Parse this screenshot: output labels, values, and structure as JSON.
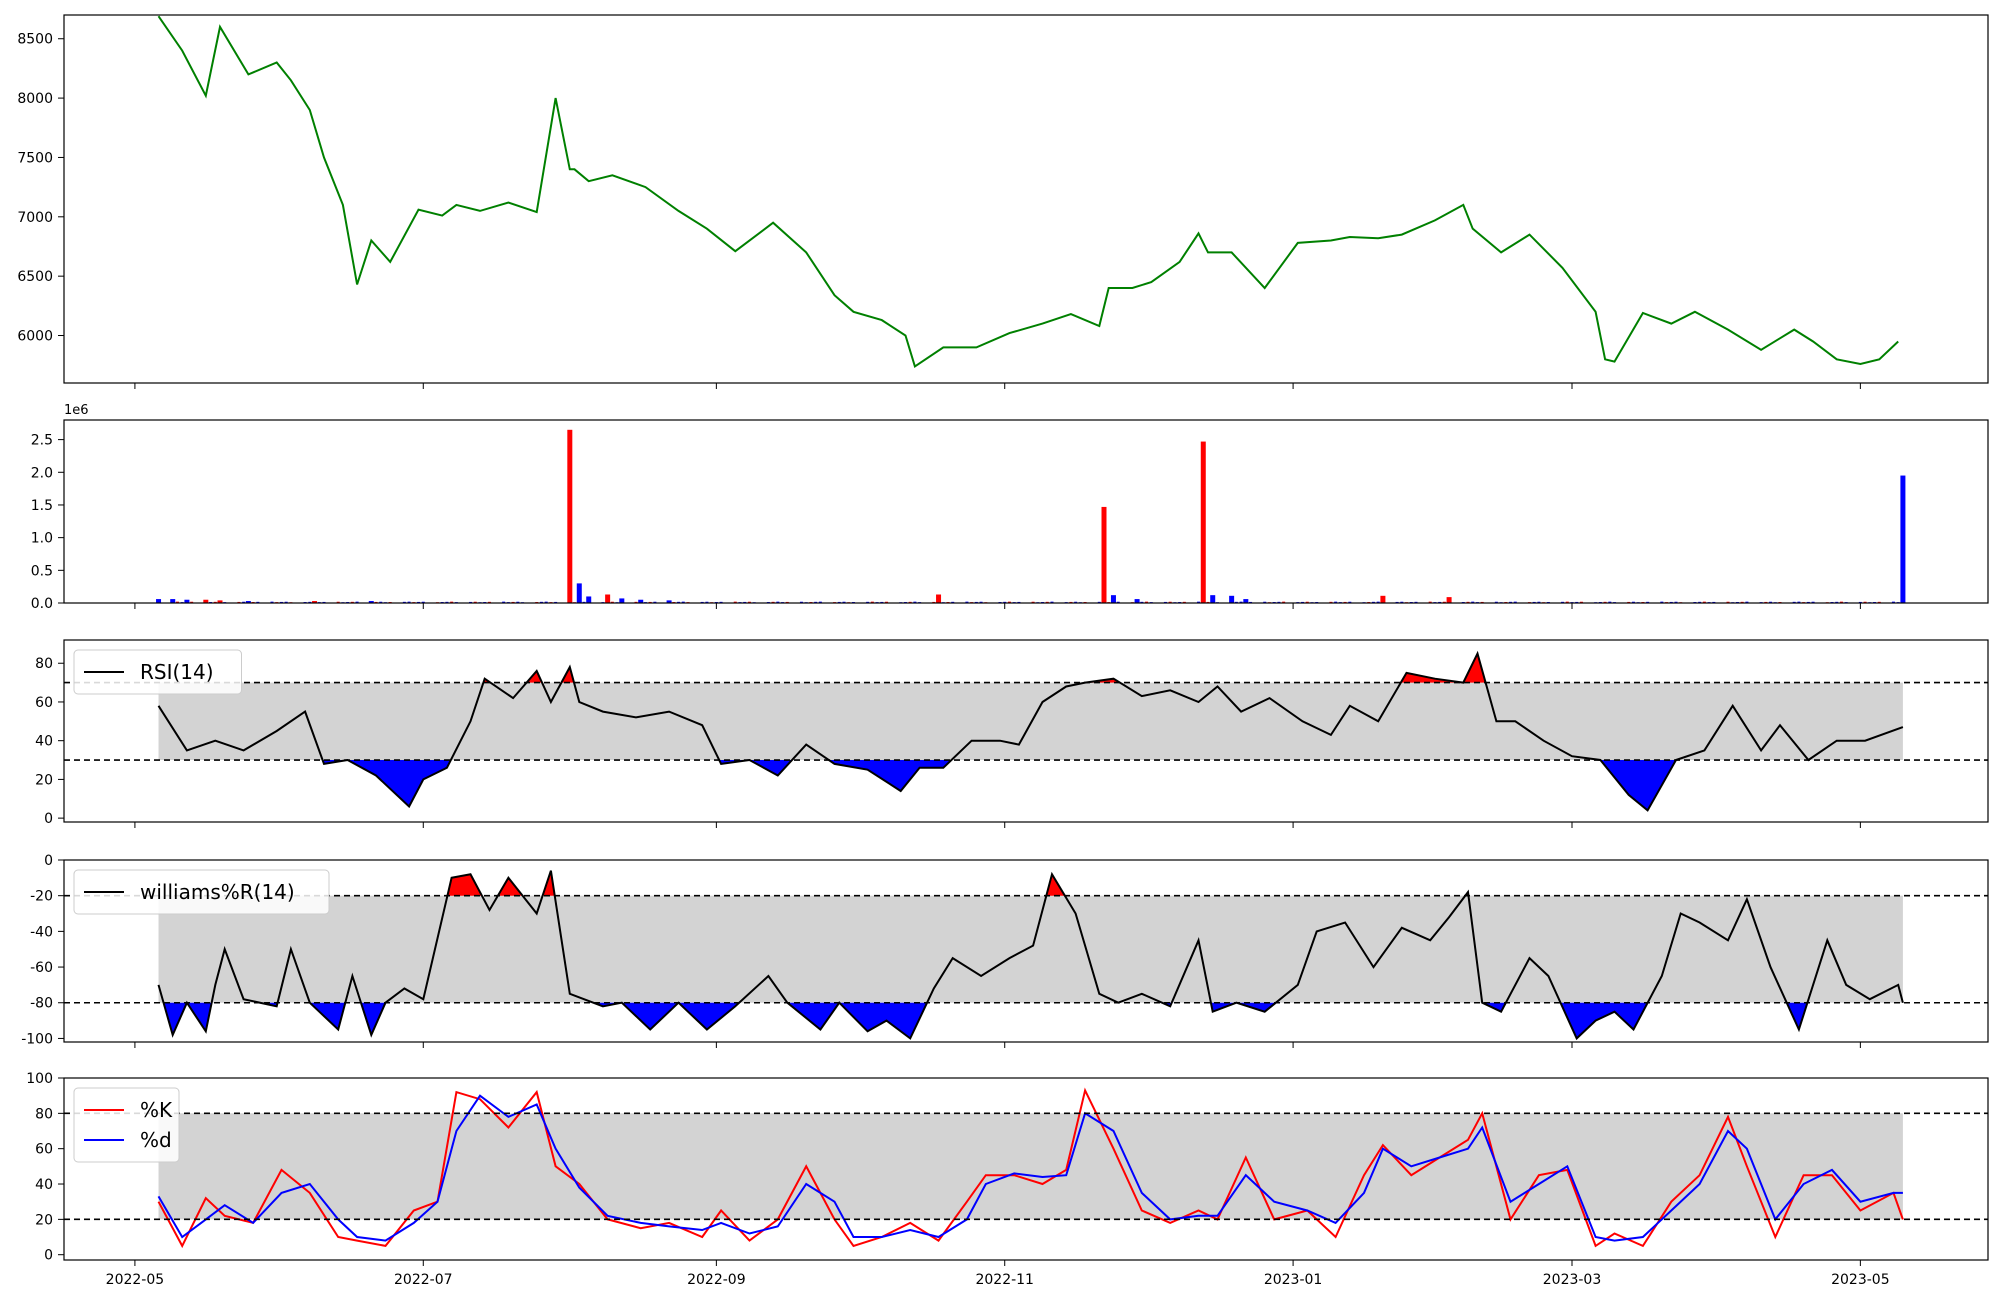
{
  "colors": {
    "price_line": "#008000",
    "up": "#ff0000",
    "down": "#0000ff",
    "band": "#d3d3d3",
    "axis": "#000000"
  },
  "x_ticks": [
    "2022-05",
    "2022-07",
    "2022-09",
    "2022-11",
    "2023-01",
    "2023-03",
    "2023-05"
  ],
  "chart_data": [
    {
      "type": "line",
      "panel": "price",
      "ylim": [
        5600,
        8700
      ],
      "yticks": [
        6000,
        6500,
        7000,
        7500,
        8000,
        8500
      ],
      "x": [
        "2022-05-06",
        "2022-05-11",
        "2022-05-16",
        "2022-05-19",
        "2022-05-25",
        "2022-05-31",
        "2022-06-03",
        "2022-06-07",
        "2022-06-10",
        "2022-06-14",
        "2022-06-17",
        "2022-06-20",
        "2022-06-24",
        "2022-06-30",
        "2022-07-05",
        "2022-07-08",
        "2022-07-13",
        "2022-07-19",
        "2022-07-25",
        "2022-07-29",
        "2022-08-01",
        "2022-08-02",
        "2022-08-05",
        "2022-08-10",
        "2022-08-17",
        "2022-08-24",
        "2022-08-30",
        "2022-09-05",
        "2022-09-13",
        "2022-09-20",
        "2022-09-26",
        "2022-09-30",
        "2022-10-06",
        "2022-10-11",
        "2022-10-13",
        "2022-10-19",
        "2022-10-26",
        "2022-11-02",
        "2022-11-09",
        "2022-11-15",
        "2022-11-21",
        "2022-11-23",
        "2022-11-28",
        "2022-12-02",
        "2022-12-08",
        "2022-12-12",
        "2022-12-14",
        "2022-12-19",
        "2022-12-26",
        "2023-01-02",
        "2023-01-09",
        "2023-01-13",
        "2023-01-19",
        "2023-01-24",
        "2023-01-31",
        "2023-02-06",
        "2023-02-08",
        "2023-02-14",
        "2023-02-20",
        "2023-02-27",
        "2023-03-06",
        "2023-03-08",
        "2023-03-10",
        "2023-03-16",
        "2023-03-22",
        "2023-03-27",
        "2023-04-03",
        "2023-04-10",
        "2023-04-17",
        "2023-04-21",
        "2023-04-26",
        "2023-05-01",
        "2023-05-05",
        "2023-05-09"
      ],
      "values": [
        8690,
        8400,
        8020,
        8600,
        8200,
        8300,
        8150,
        7900,
        7500,
        7100,
        6430,
        6800,
        6620,
        7060,
        7010,
        7100,
        7050,
        7120,
        7040,
        8000,
        7400,
        7400,
        7300,
        7350,
        7250,
        7050,
        6900,
        6710,
        6950,
        6700,
        6340,
        6200,
        6130,
        6000,
        5740,
        5900,
        5900,
        6020,
        6100,
        6180,
        6080,
        6400,
        6400,
        6450,
        6620,
        6860,
        6700,
        6700,
        6400,
        6780,
        6800,
        6830,
        6820,
        6850,
        6970,
        7100,
        6900,
        6700,
        6850,
        6570,
        6200,
        5800,
        5780,
        6190,
        6100,
        6200,
        6050,
        5880,
        6050,
        5950,
        5800,
        5760,
        5800,
        5950
      ]
    },
    {
      "type": "bar",
      "panel": "volume",
      "unit_label": "1e6",
      "ylim": [
        0,
        2.8
      ],
      "yticks": [
        "0.0",
        "0.5",
        "1.0",
        "1.5",
        "2.0",
        "2.5"
      ],
      "bars": [
        {
          "x": "2022-05-06",
          "value": 0.06,
          "dir": "down"
        },
        {
          "x": "2022-05-09",
          "value": 0.06,
          "dir": "down"
        },
        {
          "x": "2022-05-12",
          "value": 0.05,
          "dir": "down"
        },
        {
          "x": "2022-05-16",
          "value": 0.05,
          "dir": "up"
        },
        {
          "x": "2022-05-19",
          "value": 0.04,
          "dir": "up"
        },
        {
          "x": "2022-05-25",
          "value": 0.03,
          "dir": "down"
        },
        {
          "x": "2022-06-08",
          "value": 0.03,
          "dir": "up"
        },
        {
          "x": "2022-06-20",
          "value": 0.03,
          "dir": "down"
        },
        {
          "x": "2022-08-01",
          "value": 2.65,
          "dir": "up"
        },
        {
          "x": "2022-08-03",
          "value": 0.3,
          "dir": "down"
        },
        {
          "x": "2022-08-05",
          "value": 0.1,
          "dir": "down"
        },
        {
          "x": "2022-08-09",
          "value": 0.13,
          "dir": "up"
        },
        {
          "x": "2022-08-12",
          "value": 0.07,
          "dir": "down"
        },
        {
          "x": "2022-08-16",
          "value": 0.05,
          "dir": "down"
        },
        {
          "x": "2022-08-22",
          "value": 0.04,
          "dir": "down"
        },
        {
          "x": "2022-10-18",
          "value": 0.13,
          "dir": "up"
        },
        {
          "x": "2022-11-22",
          "value": 1.47,
          "dir": "up"
        },
        {
          "x": "2022-11-24",
          "value": 0.12,
          "dir": "down"
        },
        {
          "x": "2022-11-29",
          "value": 0.06,
          "dir": "down"
        },
        {
          "x": "2022-12-13",
          "value": 2.47,
          "dir": "up"
        },
        {
          "x": "2022-12-15",
          "value": 0.12,
          "dir": "down"
        },
        {
          "x": "2022-12-19",
          "value": 0.11,
          "dir": "down"
        },
        {
          "x": "2022-12-22",
          "value": 0.06,
          "dir": "down"
        },
        {
          "x": "2023-01-20",
          "value": 0.11,
          "dir": "up"
        },
        {
          "x": "2023-02-03",
          "value": 0.09,
          "dir": "up"
        },
        {
          "x": "2023-05-10",
          "value": 1.95,
          "dir": "down"
        }
      ]
    },
    {
      "type": "line",
      "panel": "rsi",
      "legend": [
        "RSI(14)"
      ],
      "ylim": [
        -2,
        92
      ],
      "yticks": [
        0,
        20,
        40,
        60,
        80
      ],
      "upper": 70,
      "lower": 30,
      "x": [
        "2022-05-06",
        "2022-05-12",
        "2022-05-18",
        "2022-05-24",
        "2022-05-31",
        "2022-06-06",
        "2022-06-10",
        "2022-06-15",
        "2022-06-21",
        "2022-06-28",
        "2022-07-01",
        "2022-07-06",
        "2022-07-11",
        "2022-07-14",
        "2022-07-20",
        "2022-07-25",
        "2022-07-28",
        "2022-08-01",
        "2022-08-03",
        "2022-08-08",
        "2022-08-15",
        "2022-08-22",
        "2022-08-29",
        "2022-09-02",
        "2022-09-08",
        "2022-09-14",
        "2022-09-20",
        "2022-09-26",
        "2022-10-03",
        "2022-10-10",
        "2022-10-14",
        "2022-10-19",
        "2022-10-25",
        "2022-10-31",
        "2022-11-04",
        "2022-11-09",
        "2022-11-14",
        "2022-11-18",
        "2022-11-24",
        "2022-11-30",
        "2022-12-06",
        "2022-12-12",
        "2022-12-16",
        "2022-12-21",
        "2022-12-27",
        "2023-01-03",
        "2023-01-09",
        "2023-01-13",
        "2023-01-19",
        "2023-01-25",
        "2023-01-31",
        "2023-02-06",
        "2023-02-09",
        "2023-02-13",
        "2023-02-17",
        "2023-02-23",
        "2023-03-01",
        "2023-03-07",
        "2023-03-13",
        "2023-03-17",
        "2023-03-23",
        "2023-03-29",
        "2023-04-04",
        "2023-04-10",
        "2023-04-14",
        "2023-04-20",
        "2023-04-26",
        "2023-05-02",
        "2023-05-10"
      ],
      "values": [
        58,
        35,
        40,
        35,
        45,
        55,
        28,
        30,
        22,
        6,
        20,
        26,
        50,
        72,
        62,
        76,
        60,
        78,
        60,
        55,
        52,
        55,
        48,
        28,
        30,
        22,
        38,
        28,
        25,
        14,
        26,
        26,
        40,
        40,
        38,
        60,
        68,
        70,
        72,
        63,
        66,
        60,
        68,
        55,
        62,
        50,
        43,
        58,
        50,
        75,
        72,
        70,
        85,
        50,
        50,
        40,
        32,
        30,
        12,
        4,
        30,
        35,
        58,
        35,
        48,
        30,
        40,
        40,
        47
      ]
    },
    {
      "type": "line",
      "panel": "williams",
      "legend": [
        "williams%R(14)"
      ],
      "ylim": [
        -102,
        0
      ],
      "yticks": [
        -100,
        -80,
        -60,
        -40,
        -20,
        0
      ],
      "upper": -20,
      "lower": -80,
      "x": [
        "2022-05-06",
        "2022-05-09",
        "2022-05-12",
        "2022-05-16",
        "2022-05-18",
        "2022-05-20",
        "2022-05-24",
        "2022-05-31",
        "2022-06-03",
        "2022-06-07",
        "2022-06-09",
        "2022-06-13",
        "2022-06-16",
        "2022-06-20",
        "2022-06-23",
        "2022-06-27",
        "2022-07-01",
        "2022-07-07",
        "2022-07-11",
        "2022-07-15",
        "2022-07-19",
        "2022-07-25",
        "2022-07-28",
        "2022-08-01",
        "2022-08-04",
        "2022-08-08",
        "2022-08-12",
        "2022-08-18",
        "2022-08-24",
        "2022-08-30",
        "2022-09-05",
        "2022-09-12",
        "2022-09-16",
        "2022-09-23",
        "2022-09-27",
        "2022-10-03",
        "2022-10-07",
        "2022-10-12",
        "2022-10-17",
        "2022-10-21",
        "2022-10-27",
        "2022-11-02",
        "2022-11-07",
        "2022-11-11",
        "2022-11-16",
        "2022-11-21",
        "2022-11-25",
        "2022-11-30",
        "2022-12-06",
        "2022-12-12",
        "2022-12-15",
        "2022-12-20",
        "2022-12-26",
        "2023-01-02",
        "2023-01-06",
        "2023-01-12",
        "2023-01-18",
        "2023-01-24",
        "2023-01-30",
        "2023-02-03",
        "2023-02-07",
        "2023-02-10",
        "2023-02-14",
        "2023-02-20",
        "2023-02-24",
        "2023-03-02",
        "2023-03-06",
        "2023-03-10",
        "2023-03-14",
        "2023-03-20",
        "2023-03-24",
        "2023-03-28",
        "2023-04-03",
        "2023-04-07",
        "2023-04-12",
        "2023-04-18",
        "2023-04-24",
        "2023-04-28",
        "2023-05-03",
        "2023-05-09",
        "2023-05-10"
      ],
      "values": [
        -70,
        -98,
        -80,
        -96,
        -70,
        -50,
        -78,
        -82,
        -50,
        -80,
        -85,
        -95,
        -65,
        -98,
        -80,
        -72,
        -78,
        -10,
        -8,
        -28,
        -10,
        -30,
        -6,
        -75,
        -78,
        -82,
        -80,
        -95,
        -80,
        -95,
        -82,
        -65,
        -80,
        -95,
        -80,
        -96,
        -90,
        -100,
        -72,
        -55,
        -65,
        -55,
        -48,
        -8,
        -30,
        -75,
        -80,
        -75,
        -82,
        -45,
        -85,
        -80,
        -85,
        -70,
        -40,
        -35,
        -60,
        -38,
        -45,
        -32,
        -18,
        -80,
        -85,
        -55,
        -65,
        -100,
        -90,
        -85,
        -95,
        -65,
        -30,
        -35,
        -45,
        -22,
        -60,
        -95,
        -45,
        -70,
        -78,
        -70,
        -80
      ]
    },
    {
      "type": "line",
      "panel": "stochastic",
      "legend": [
        "%K",
        "%d"
      ],
      "ylim": [
        -3,
        100
      ],
      "yticks": [
        0,
        20,
        40,
        60,
        80,
        100
      ],
      "upper": 80,
      "lower": 20,
      "x": [
        "2022-05-06",
        "2022-05-11",
        "2022-05-16",
        "2022-05-20",
        "2022-05-26",
        "2022-06-01",
        "2022-06-07",
        "2022-06-13",
        "2022-06-17",
        "2022-06-23",
        "2022-06-29",
        "2022-07-04",
        "2022-07-08",
        "2022-07-13",
        "2022-07-19",
        "2022-07-25",
        "2022-07-29",
        "2022-08-03",
        "2022-08-09",
        "2022-08-16",
        "2022-08-22",
        "2022-08-29",
        "2022-09-02",
        "2022-09-08",
        "2022-09-14",
        "2022-09-20",
        "2022-09-26",
        "2022-09-30",
        "2022-10-06",
        "2022-10-12",
        "2022-10-18",
        "2022-10-24",
        "2022-10-28",
        "2022-11-03",
        "2022-11-09",
        "2022-11-14",
        "2022-11-18",
        "2022-11-24",
        "2022-11-30",
        "2022-12-06",
        "2022-12-12",
        "2022-12-16",
        "2022-12-22",
        "2022-12-28",
        "2023-01-04",
        "2023-01-10",
        "2023-01-16",
        "2023-01-20",
        "2023-01-26",
        "2023-02-01",
        "2023-02-07",
        "2023-02-10",
        "2023-02-16",
        "2023-02-22",
        "2023-02-28",
        "2023-03-06",
        "2023-03-10",
        "2023-03-16",
        "2023-03-22",
        "2023-03-28",
        "2023-04-03",
        "2023-04-07",
        "2023-04-13",
        "2023-04-19",
        "2023-04-25",
        "2023-05-01",
        "2023-05-08",
        "2023-05-10"
      ],
      "series": [
        {
          "name": "%K",
          "color": "#ff0000",
          "values": [
            30,
            5,
            32,
            22,
            18,
            48,
            35,
            10,
            8,
            5,
            25,
            30,
            92,
            88,
            72,
            92,
            50,
            40,
            20,
            15,
            18,
            10,
            25,
            8,
            20,
            50,
            20,
            5,
            10,
            18,
            8,
            30,
            45,
            45,
            40,
            48,
            93,
            60,
            25,
            18,
            25,
            20,
            55,
            20,
            25,
            10,
            45,
            62,
            45,
            55,
            65,
            80,
            20,
            45,
            48,
            5,
            12,
            5,
            30,
            45,
            78,
            50,
            10,
            45,
            45,
            25,
            35,
            20
          ],
          "legend_color": "#ff0000"
        },
        {
          "name": "%d",
          "color": "#0000ff",
          "values": [
            33,
            10,
            20,
            28,
            18,
            35,
            40,
            20,
            10,
            8,
            18,
            30,
            70,
            90,
            78,
            85,
            60,
            38,
            22,
            18,
            16,
            14,
            18,
            12,
            16,
            40,
            30,
            10,
            10,
            14,
            10,
            20,
            40,
            46,
            44,
            45,
            80,
            70,
            35,
            20,
            22,
            22,
            45,
            30,
            25,
            18,
            35,
            60,
            50,
            55,
            60,
            72,
            30,
            40,
            50,
            10,
            8,
            10,
            25,
            40,
            70,
            60,
            20,
            40,
            48,
            30,
            35,
            35
          ],
          "legend_color": "#0000ff"
        }
      ]
    }
  ]
}
